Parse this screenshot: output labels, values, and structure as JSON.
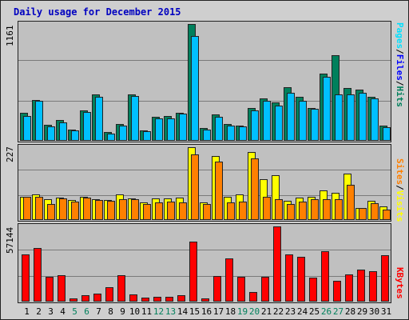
{
  "title": "Daily usage for December 2015",
  "axes": {
    "hits_max_label": "1161",
    "sites_max_label": "227",
    "kbytes_max_label": "57144"
  },
  "legend": {
    "right_panel1_pages": "Pages",
    "right_panel1_files": "Files",
    "right_panel1_hits": "Hits",
    "right_panel1_sep": "/",
    "right_panel2_sites": "Sites",
    "right_panel2_visits": "Visits",
    "right_panel2_sep": "/",
    "right_panel3_kbytes": "KBytes"
  },
  "colors": {
    "hits": "#00805c",
    "files": "#00c0ff",
    "pages": "#00e0ff",
    "visits": "#ffff00",
    "sites": "#ff8000",
    "kbytes": "#ff0000",
    "weekday": "#000000",
    "weekend": "#00805c"
  },
  "chart_data": [
    {
      "type": "bar",
      "panel": "hits_files_pages",
      "title": "Daily usage for December 2015",
      "ylim": [
        0,
        1161
      ],
      "categories": [
        "1",
        "2",
        "3",
        "4",
        "5",
        "6",
        "7",
        "8",
        "9",
        "10",
        "11",
        "12",
        "13",
        "14",
        "15",
        "16",
        "17",
        "18",
        "19",
        "20",
        "21",
        "22",
        "23",
        "24",
        "25",
        "26",
        "27",
        "28",
        "29",
        "30",
        "31"
      ],
      "series": [
        {
          "name": "Hits",
          "values": [
            278,
            409,
            162,
            205,
            115,
            302,
            464,
            85,
            170,
            464,
            100,
            235,
            246,
            278,
            1161,
            124,
            262,
            170,
            155,
            324,
            419,
            385,
            529,
            434,
            324,
            665,
            853,
            521,
            510,
            440,
            150
          ]
        },
        {
          "name": "Files",
          "values": [
            247,
            394,
            146,
            185,
            100,
            287,
            434,
            75,
            155,
            444,
            95,
            220,
            225,
            270,
            1040,
            110,
            240,
            150,
            144,
            303,
            394,
            346,
            480,
            394,
            315,
            637,
            460,
            464,
            480,
            425,
            135
          ]
        },
        {
          "name": "Pages",
          "values": [
            0,
            0,
            0,
            0,
            0,
            0,
            0,
            0,
            0,
            0,
            0,
            0,
            0,
            0,
            0,
            0,
            0,
            0,
            0,
            0,
            0,
            0,
            0,
            0,
            0,
            0,
            0,
            0,
            0,
            0,
            0
          ]
        }
      ]
    },
    {
      "type": "bar",
      "panel": "sites_visits",
      "ylim": [
        0,
        227
      ],
      "categories": [
        "1",
        "2",
        "3",
        "4",
        "5",
        "6",
        "7",
        "8",
        "9",
        "10",
        "11",
        "12",
        "13",
        "14",
        "15",
        "16",
        "17",
        "18",
        "19",
        "20",
        "21",
        "22",
        "23",
        "24",
        "25",
        "26",
        "27",
        "28",
        "29",
        "30",
        "31"
      ],
      "series": [
        {
          "name": "Visits",
          "values": [
            72,
            80,
            64,
            70,
            62,
            72,
            66,
            63,
            80,
            68,
            56,
            68,
            68,
            70,
            227,
            56,
            200,
            72,
            80,
            212,
            126,
            140,
            60,
            69,
            72,
            92,
            86,
            145,
            37,
            60,
            43
          ]
        },
        {
          "name": "Sites",
          "values": [
            72,
            72,
            50,
            68,
            57,
            70,
            62,
            61,
            66,
            65,
            49,
            55,
            58,
            56,
            204,
            49,
            181,
            55,
            58,
            192,
            72,
            64,
            50,
            58,
            65,
            65,
            65,
            109,
            37,
            53,
            32
          ]
        }
      ]
    },
    {
      "type": "bar",
      "panel": "kbytes",
      "ylim": [
        0,
        57144
      ],
      "categories": [
        "1",
        "2",
        "3",
        "4",
        "5",
        "6",
        "7",
        "8",
        "9",
        "10",
        "11",
        "12",
        "13",
        "14",
        "15",
        "16",
        "17",
        "18",
        "19",
        "20",
        "21",
        "22",
        "23",
        "24",
        "25",
        "26",
        "27",
        "28",
        "29",
        "30",
        "31"
      ],
      "series": [
        {
          "name": "KBytes",
          "values": [
            35900,
            40700,
            18900,
            19800,
            2300,
            4700,
            6100,
            10800,
            20000,
            5600,
            3000,
            3500,
            3500,
            4900,
            45500,
            2600,
            19300,
            33000,
            18700,
            7000,
            18700,
            57144,
            35900,
            34000,
            18400,
            38300,
            15700,
            20600,
            24400,
            22800,
            35400
          ]
        }
      ]
    }
  ],
  "weekend_days": [
    5,
    6,
    12,
    13,
    19,
    20,
    26,
    27
  ]
}
